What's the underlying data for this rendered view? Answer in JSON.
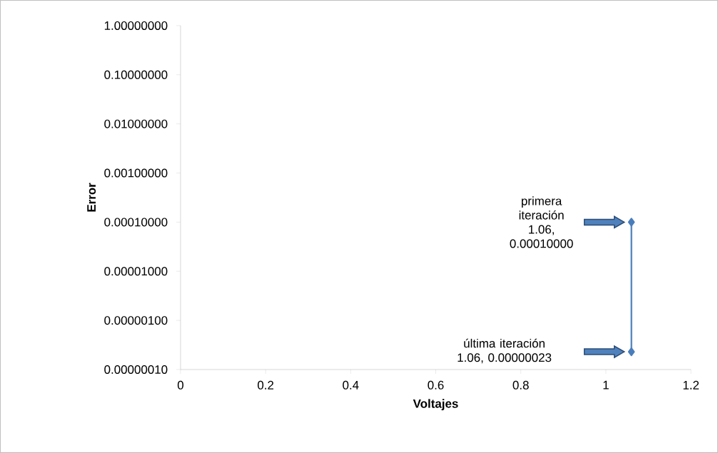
{
  "chart_data": {
    "type": "line",
    "xlabel": "Voltajes",
    "ylabel": "Error",
    "x": [
      1.06,
      1.06
    ],
    "values": [
      0.0001,
      2.3e-07
    ],
    "color": "#4a7ebb",
    "marker": "diamond",
    "line_style": "solid",
    "log": "y",
    "grid": false,
    "xlim": [
      0,
      1.2
    ],
    "xticks": [
      0,
      0.2,
      0.4,
      0.6,
      0.8,
      1,
      1.2
    ],
    "ylim": [
      1e-07,
      1
    ],
    "yticks": [
      {
        "value": 1,
        "label": "1.00000000"
      },
      {
        "value": 0.1,
        "label": "0.10000000"
      },
      {
        "value": 0.01,
        "label": "0.01000000"
      },
      {
        "value": 0.001,
        "label": "0.00100000"
      },
      {
        "value": 0.0001,
        "label": "0.00010000"
      },
      {
        "value": 1e-05,
        "label": "0.00001000"
      },
      {
        "value": 1e-06,
        "label": "0.00000100"
      },
      {
        "value": 1e-07,
        "label": "0.00000010"
      }
    ],
    "annotations": [
      "primera iteración 1.06, 0.00010000",
      "última iteración 1.06, 0.00000023"
    ]
  }
}
